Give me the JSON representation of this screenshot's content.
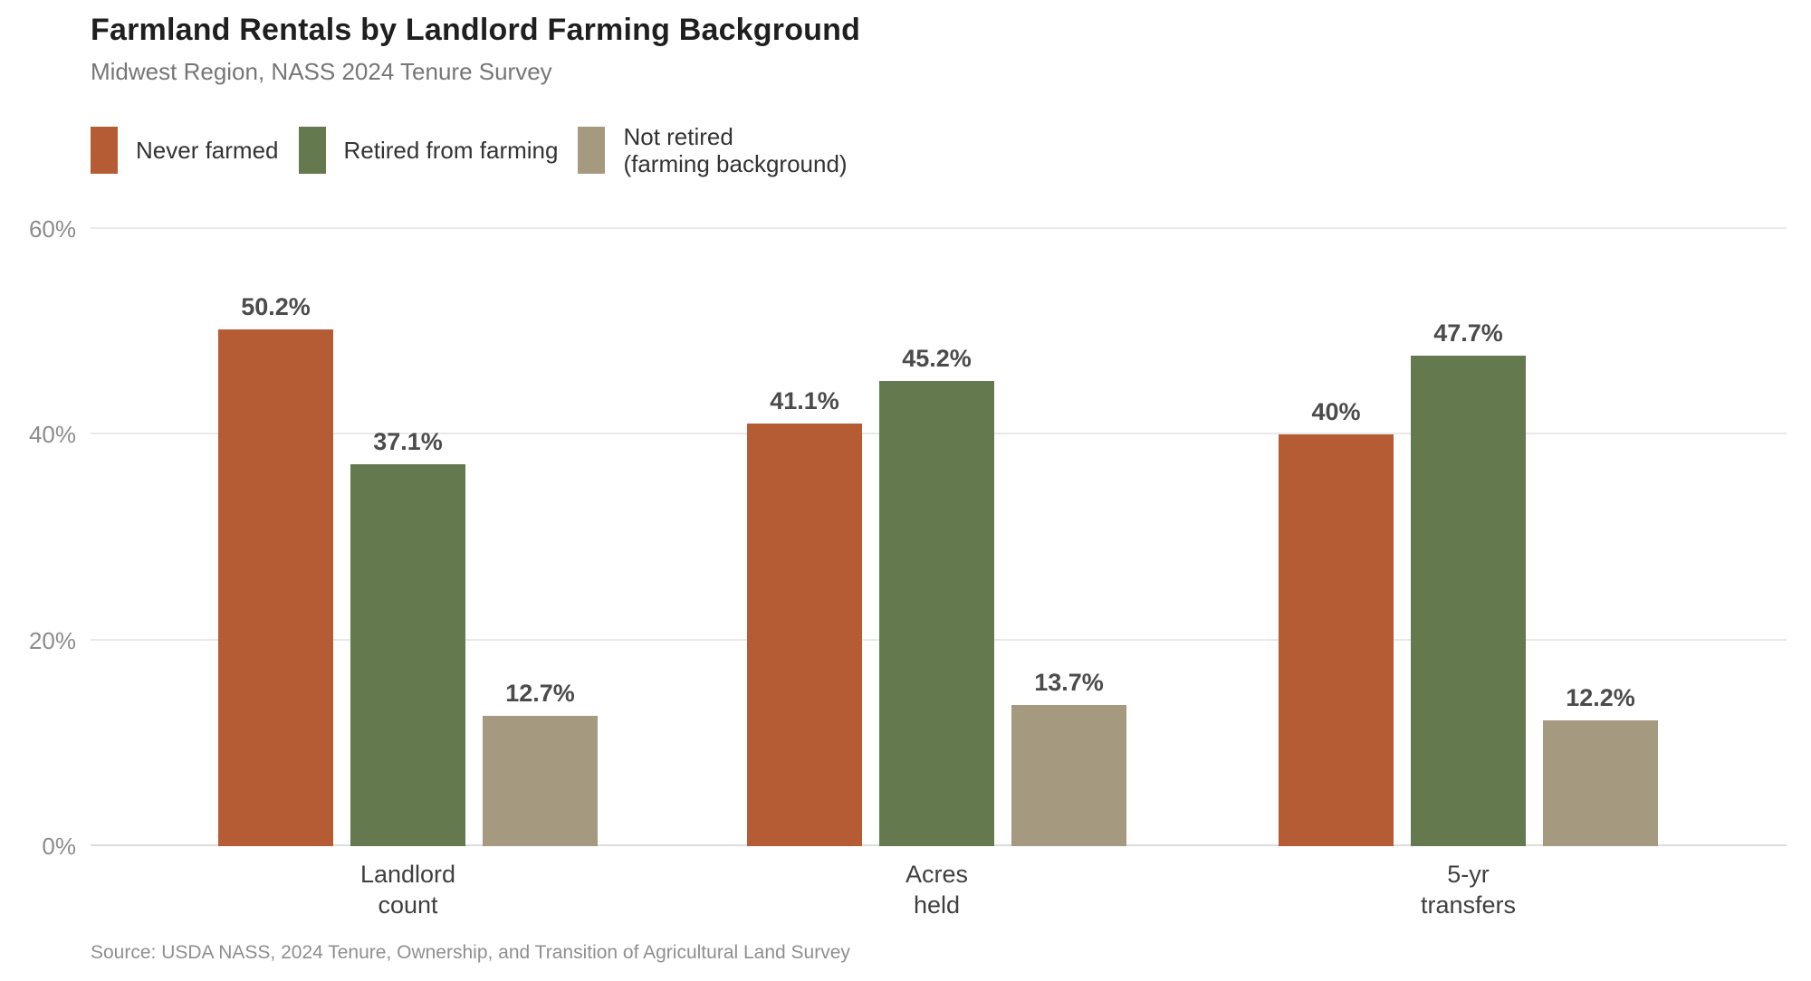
{
  "title": "Farmland Rentals by Landlord Farming Background",
  "subtitle": "Midwest Region, NASS 2024 Tenure Survey",
  "source": "Source: USDA NASS, 2024 Tenure, Ownership, and Transition of Agricultural Land Survey",
  "colors": {
    "never_farmed": "#b65c35",
    "retired_from_farming": "#64794e",
    "not_retired": "#a59980",
    "gridline": "#e9e9e9",
    "title_text": "#1f1f1f",
    "muted_text": "#8c8c8c"
  },
  "chart_data": {
    "type": "bar",
    "title": "Farmland Rentals by Landlord Farming Background",
    "subtitle": "Midwest Region, NASS 2024 Tenure Survey",
    "categories": [
      "Landlord\ncount",
      "Acres\nheld",
      "5-yr\ntransfers"
    ],
    "series": [
      {
        "key": "never-farmed",
        "name": "Never farmed",
        "legend_label": "Never farmed",
        "color": "#b65c35",
        "values": [
          50.2,
          41.1,
          40
        ],
        "labels": [
          "50.2%",
          "41.1%",
          "40%"
        ]
      },
      {
        "key": "retired-from-farming",
        "name": "Retired from farming",
        "legend_label": "Retired from farming",
        "color": "#64794e",
        "values": [
          37.1,
          45.2,
          47.7
        ],
        "labels": [
          "37.1%",
          "45.2%",
          "47.7%"
        ]
      },
      {
        "key": "not-retired",
        "name": "Not retired (farming background)",
        "legend_label": "Not retired\n(farming background)",
        "color": "#a59980",
        "values": [
          12.7,
          13.7,
          12.2
        ],
        "labels": [
          "12.7%",
          "13.7%",
          "12.2%"
        ]
      }
    ],
    "xlabel": "",
    "ylabel": "",
    "ylim": [
      0,
      60
    ],
    "yticks": [
      {
        "value": 0,
        "label": "0%"
      },
      {
        "value": 20,
        "label": "20%"
      },
      {
        "value": 40,
        "label": "40%"
      },
      {
        "value": 60,
        "label": "60%"
      }
    ],
    "grid": true,
    "legend_position": "top-left"
  }
}
